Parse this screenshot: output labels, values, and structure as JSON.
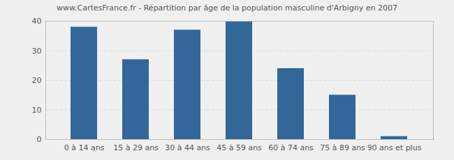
{
  "chart_data": {
    "type": "bar",
    "title": "www.CartesFrance.fr - Répartition par âge de la population masculine d'Arbigny en 2007",
    "categories": [
      "0 à 14 ans",
      "15 à 29 ans",
      "30 à 44 ans",
      "45 à 59 ans",
      "60 à 74 ans",
      "75 à 89 ans",
      "90 ans et plus"
    ],
    "values": [
      38,
      27,
      37,
      40,
      24,
      15,
      1
    ],
    "color": "#336699",
    "ylim": [
      0,
      40
    ],
    "yticks": [
      0,
      10,
      20,
      30,
      40
    ],
    "grid": true
  }
}
